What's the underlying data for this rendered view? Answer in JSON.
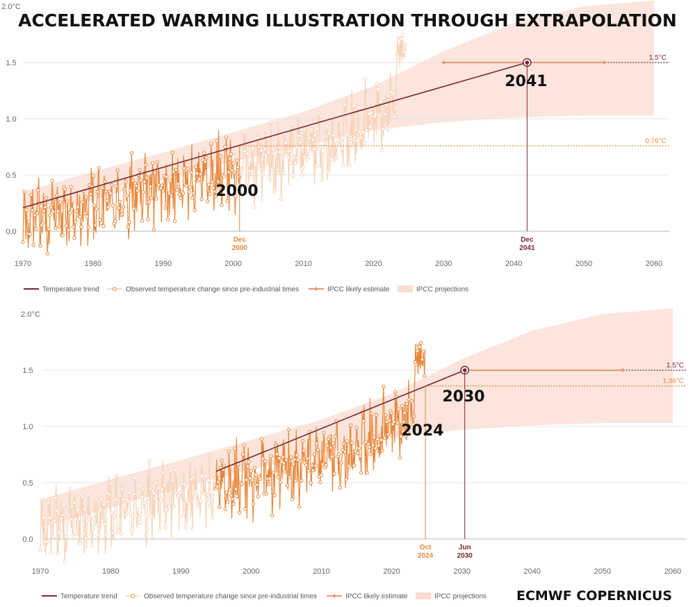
{
  "title": "ACCELERATED WARMING ILLUSTRATION THROUGH EXTRAPOLATION",
  "credit": "ECMWF COPERNICUS",
  "colors": {
    "trend": "#7a2633",
    "observed": "#e8873a",
    "observed_faded": "#f6d3b8",
    "ipcc": "#e49b75",
    "projection": "#fadcd0",
    "grid": "#e4e4e4"
  },
  "legend": {
    "trend": "Temperature trend",
    "observed": "Observed temperature change since pre-industrial times",
    "ipcc": "IPCC likely estimate",
    "projection": "IPCC projections"
  },
  "chart_data": [
    {
      "type": "line",
      "panel": "top",
      "ylabel_top": "2.0°C",
      "y_ticks": [
        "0.0",
        "0.5",
        "1.0",
        "1.5"
      ],
      "x_ticks": [
        "1970",
        "1980",
        "1990",
        "2000",
        "2010",
        "2020",
        "2030",
        "2040",
        "2050",
        "2060"
      ],
      "xlim": [
        1970,
        2062
      ],
      "ylim": [
        -0.25,
        2.0
      ],
      "observed_highlight_range": [
        1970,
        2000.9
      ],
      "observed_faded_range": [
        2001,
        2024.6
      ],
      "trend": {
        "x": [
          1970,
          2041.9
        ],
        "y": [
          0.21,
          1.5
        ]
      },
      "ipcc_estimate": {
        "x": [
          2030,
          2052.9
        ],
        "y": 1.5
      },
      "reference_lines": [
        {
          "y": 1.5,
          "label": "1.5°C",
          "style": "trend"
        },
        {
          "y": 0.76,
          "label": "0.76°C",
          "style": "observed"
        }
      ],
      "markers": [
        {
          "x": 2000.9,
          "line1": "Dec",
          "line2": "2000",
          "big": "2000",
          "style": "observed"
        },
        {
          "x": 2041.9,
          "line1": "Dec",
          "line2": "2041",
          "big": "2041",
          "style": "trend"
        }
      ],
      "projection_band": {
        "x": [
          1970,
          1980,
          1990,
          2000,
          2010,
          2020,
          2030,
          2040,
          2050,
          2060
        ],
        "lower": [
          0.1,
          0.28,
          0.46,
          0.62,
          0.76,
          0.9,
          0.97,
          1.01,
          1.03,
          1.03
        ],
        "upper": [
          0.35,
          0.53,
          0.7,
          0.88,
          1.06,
          1.29,
          1.6,
          1.85,
          2.0,
          2.05
        ]
      }
    },
    {
      "type": "line",
      "panel": "bottom",
      "ylabel_top": "2.0°C",
      "y_ticks": [
        "0.0",
        "0.5",
        "1.0",
        "1.5"
      ],
      "x_ticks": [
        "1970",
        "1980",
        "1990",
        "2000",
        "2010",
        "2020",
        "2030",
        "2040",
        "2050",
        "2060"
      ],
      "xlim": [
        1970,
        2062
      ],
      "ylim": [
        -0.25,
        2.0
      ],
      "observed_highlight_range": [
        1995,
        2024.8
      ],
      "observed_faded_range": [
        1970,
        1994.9
      ],
      "trend": {
        "x": [
          1995,
          2030.4
        ],
        "y": [
          0.6,
          1.5
        ]
      },
      "ipcc_estimate": {
        "x": [
          2030.4,
          2052.9
        ],
        "y": 1.5
      },
      "reference_lines": [
        {
          "y": 1.5,
          "label": "1.5°C",
          "style": "trend"
        },
        {
          "y": 1.36,
          "label": "1.36°C",
          "style": "observed"
        }
      ],
      "markers": [
        {
          "x": 2024.8,
          "line1": "Oct",
          "line2": "2024",
          "big": "2024",
          "style": "observed"
        },
        {
          "x": 2030.4,
          "line1": "Jun",
          "line2": "2030",
          "big": "2030",
          "style": "trend"
        }
      ],
      "projection_band": {
        "x": [
          1970,
          1980,
          1990,
          2000,
          2010,
          2020,
          2030,
          2040,
          2050,
          2060
        ],
        "lower": [
          0.1,
          0.28,
          0.46,
          0.62,
          0.76,
          0.9,
          0.97,
          1.01,
          1.03,
          1.03
        ],
        "upper": [
          0.35,
          0.53,
          0.7,
          0.88,
          1.06,
          1.29,
          1.6,
          1.85,
          2.0,
          2.05
        ]
      }
    }
  ]
}
